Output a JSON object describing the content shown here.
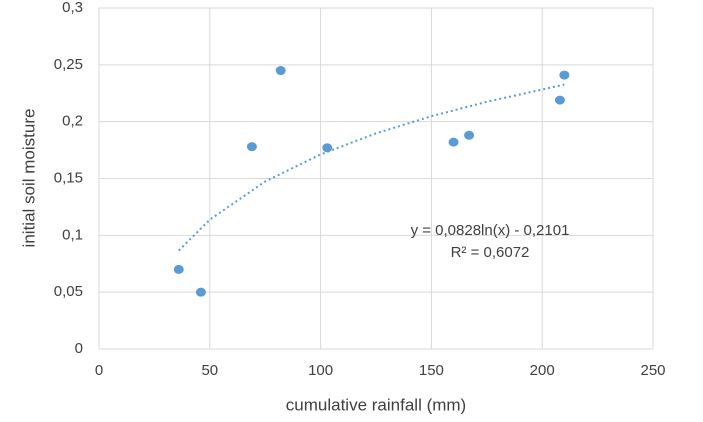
{
  "chart_data": {
    "type": "scatter",
    "x": [
      36,
      46,
      69,
      82,
      103,
      160,
      167,
      208,
      210
    ],
    "values": [
      0.07,
      0.05,
      0.178,
      0.245,
      0.177,
      0.182,
      0.188,
      0.219,
      0.241
    ],
    "color": "#5b9bd5",
    "xlabel": "cumulative rainfall (mm)",
    "ylabel": "initial soil moisture",
    "xlim": [
      0,
      250
    ],
    "xticks": [
      0,
      50,
      100,
      150,
      200,
      250
    ],
    "ylim": [
      0,
      0.3
    ],
    "yticks": [
      0,
      {
        "value": 0.05,
        "label": "0,05"
      },
      {
        "value": 0.1,
        "label": "0,1"
      },
      {
        "value": 0.15,
        "label": "0,15"
      },
      {
        "value": 0.2,
        "label": "0,2"
      },
      {
        "value": 0.25,
        "label": "0,25"
      },
      {
        "value": 0.3,
        "label": "0,3"
      }
    ],
    "grid": true,
    "trendline": {
      "x": [
        36,
        50,
        75,
        100,
        125,
        150,
        175,
        210
      ],
      "y": [
        0.0866,
        0.1138,
        0.1474,
        0.1712,
        0.1897,
        0.2048,
        0.2175,
        0.2326
      ]
    },
    "annotations": [
      "y = 0,0828ln(x) - 0,2101",
      "R² = 0,6072"
    ]
  }
}
